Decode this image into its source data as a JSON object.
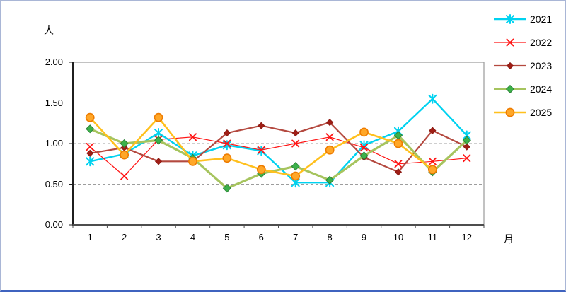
{
  "chart_data": {
    "type": "line",
    "title": "",
    "ylabel": "人",
    "xlabel": "月",
    "x_categories": [
      "1",
      "2",
      "3",
      "4",
      "5",
      "6",
      "7",
      "8",
      "9",
      "10",
      "11",
      "12"
    ],
    "y_ticks": [
      "0.00",
      "0.50",
      "1.00",
      "1.50",
      "2.00"
    ],
    "ylim": [
      0,
      2.0
    ],
    "grid": "horizontal dashed at 0.50, 1.00, 1.50",
    "legend_position": "right-top",
    "series": [
      {
        "name": "2021",
        "color": "#00d2f0",
        "marker": "asterisk",
        "marker_color": "#00d2f0",
        "marker_size": 5,
        "line_width": 2.4,
        "values": [
          0.78,
          0.87,
          1.13,
          0.85,
          0.98,
          0.91,
          0.52,
          0.52,
          0.98,
          1.15,
          1.55,
          1.1
        ]
      },
      {
        "name": "2022",
        "color": "#ff1414",
        "marker": "x",
        "marker_color": "#ff1414",
        "marker_size": 4.6,
        "line_width": 1.2,
        "values": [
          0.96,
          0.6,
          1.05,
          1.08,
          1.0,
          0.92,
          1.0,
          1.08,
          0.95,
          0.75,
          0.78,
          0.82
        ]
      },
      {
        "name": "2023",
        "color": "#b4493f",
        "marker": "diamond",
        "marker_color": "#a01e16",
        "marker_stroke": "#8c1a12",
        "marker_size": 4.4,
        "line_width": 2.2,
        "values": [
          0.88,
          0.95,
          0.78,
          0.78,
          1.13,
          1.22,
          1.13,
          1.26,
          0.83,
          0.65,
          1.16,
          0.96
        ]
      },
      {
        "name": "2024",
        "color": "#a6c45e",
        "marker": "diamond",
        "marker_color": "#3cb14a",
        "marker_stroke": "#2d8338",
        "marker_size": 5.4,
        "line_width": 3.2,
        "values": [
          1.18,
          1.0,
          1.04,
          0.82,
          0.45,
          0.63,
          0.72,
          0.55,
          0.85,
          1.1,
          0.65,
          1.04
        ]
      },
      {
        "name": "2025",
        "color": "#ffc01e",
        "marker": "circle",
        "marker_color": "#ffa728",
        "marker_stroke": "#ee7c00",
        "marker_size": 5.6,
        "line_width": 2.6,
        "values": [
          1.32,
          0.86,
          1.32,
          0.78,
          0.82,
          0.68,
          0.6,
          0.92,
          1.14,
          1.0,
          0.68,
          null
        ]
      }
    ]
  }
}
